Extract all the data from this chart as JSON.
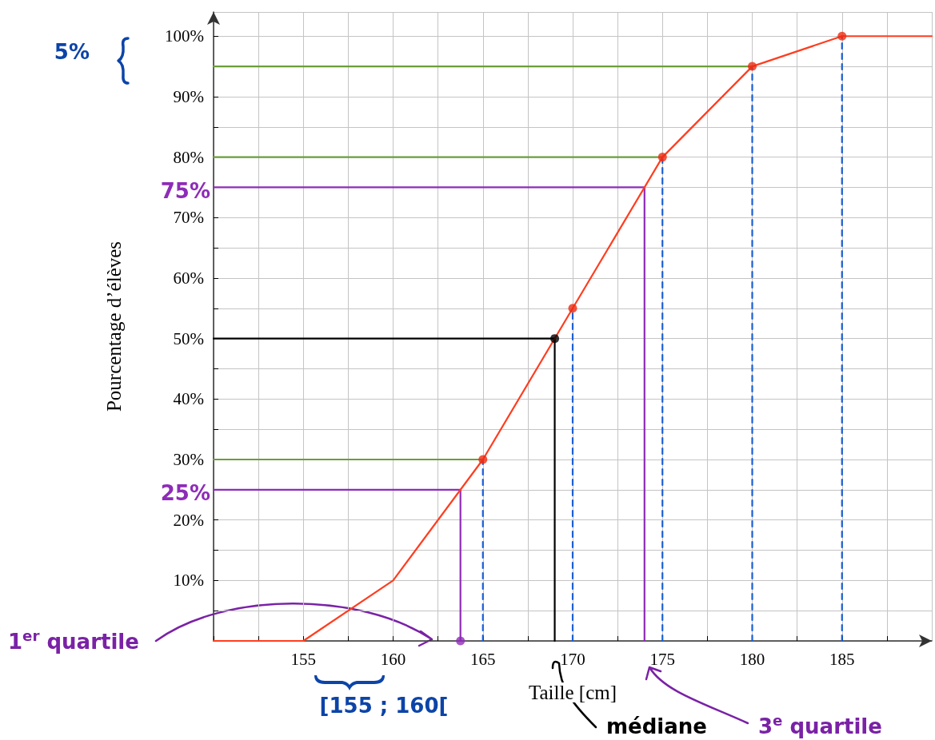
{
  "chart_data": {
    "type": "line",
    "xlabel": "Taille [cm]",
    "ylabel": "Pourcentage d’élèves",
    "xlim": [
      150,
      190
    ],
    "ylim": [
      0,
      104
    ],
    "xticks": [
      {
        "value": 150,
        "label": null
      },
      {
        "value": 152.5,
        "label": null
      },
      155,
      {
        "value": 157.5,
        "label": null
      },
      160,
      {
        "value": 162.5,
        "label": null
      },
      165,
      {
        "value": 167.5,
        "label": null
      },
      170,
      {
        "value": 172.5,
        "label": null
      },
      175,
      {
        "value": 177.5,
        "label": null
      },
      180,
      {
        "value": 182.5,
        "label": null
      },
      185,
      {
        "value": 187.5,
        "label": null
      }
    ],
    "yticks": [
      {
        "value": 0,
        "label": null
      },
      {
        "value": 5,
        "label": null
      },
      {
        "value": 10,
        "label": "10%"
      },
      {
        "value": 15,
        "label": null
      },
      {
        "value": 20,
        "label": "20%"
      },
      {
        "value": 25,
        "label": null
      },
      {
        "value": 30,
        "label": "30%"
      },
      {
        "value": 35,
        "label": null
      },
      {
        "value": 40,
        "label": "40%"
      },
      {
        "value": 45,
        "label": null
      },
      {
        "value": 50,
        "label": "50%"
      },
      {
        "value": 55,
        "label": null
      },
      {
        "value": 60,
        "label": "60%"
      },
      {
        "value": 65,
        "label": null
      },
      {
        "value": 70,
        "label": "70%"
      },
      {
        "value": 75,
        "label": null
      },
      {
        "value": 80,
        "label": "80%"
      },
      {
        "value": 85,
        "label": null
      },
      {
        "value": 90,
        "label": "90%"
      },
      {
        "value": 95,
        "label": null
      },
      {
        "value": 100,
        "label": "100%"
      }
    ],
    "grid": true,
    "series": [
      {
        "type": "line",
        "color": "#6a9e3a",
        "marker": "none",
        "line_style": "solid",
        "x": [
          150,
          165
        ],
        "values": [
          30,
          30
        ]
      },
      {
        "type": "line",
        "color": "#6a9e3a",
        "marker": "none",
        "line_style": "solid",
        "x": [
          150,
          175
        ],
        "values": [
          80,
          80
        ]
      },
      {
        "type": "line",
        "color": "#6a9e3a",
        "marker": "none",
        "line_style": "solid",
        "x": [
          150,
          180
        ],
        "values": [
          95,
          95
        ]
      },
      {
        "type": "line",
        "color": "#1a5fd6",
        "marker": "none",
        "line_style": "dashed",
        "x": [
          165,
          165
        ],
        "values": [
          0,
          30
        ]
      },
      {
        "type": "line",
        "color": "#1a5fd6",
        "marker": "none",
        "line_style": "dashed",
        "x": [
          170,
          170
        ],
        "values": [
          0,
          55
        ]
      },
      {
        "type": "line",
        "color": "#1a5fd6",
        "marker": "none",
        "line_style": "dashed",
        "x": [
          175,
          175
        ],
        "values": [
          0,
          80
        ]
      },
      {
        "type": "line",
        "color": "#1a5fd6",
        "marker": "none",
        "line_style": "dashed",
        "x": [
          180,
          180
        ],
        "values": [
          0,
          95
        ]
      },
      {
        "type": "line",
        "color": "#1a5fd6",
        "marker": "none",
        "line_style": "dashed",
        "x": [
          185,
          185
        ],
        "values": [
          0,
          100
        ]
      },
      {
        "type": "line",
        "color": "#8e2cb8",
        "marker": "none",
        "line_style": "solid",
        "x": [
          150,
          163.75,
          163.75
        ],
        "values": [
          25,
          25,
          0
        ]
      },
      {
        "type": "line",
        "color": "#8e2cb8",
        "marker": "none",
        "line_style": "solid",
        "x": [
          150,
          174,
          174
        ],
        "values": [
          75,
          75,
          0
        ]
      },
      {
        "type": "line",
        "color": "#000000",
        "marker": "none",
        "line_style": "solid",
        "x": [
          150,
          169,
          169
        ],
        "values": [
          50,
          50,
          0
        ]
      },
      {
        "type": "line",
        "color": "#ff3d1f",
        "marker": "none",
        "line_style": "solid",
        "x": [
          150,
          155,
          160,
          165,
          170,
          175,
          180,
          185,
          190
        ],
        "values": [
          0,
          0,
          10,
          30,
          55,
          80,
          95,
          100,
          100
        ]
      },
      {
        "type": "scatter",
        "color": "#ee2a10",
        "marker": "circle",
        "x": [
          165,
          170,
          175,
          180,
          185
        ],
        "values": [
          30,
          55,
          80,
          95,
          100
        ]
      },
      {
        "type": "scatter",
        "color": "#000000",
        "marker": "circle",
        "x": [
          169
        ],
        "values": [
          50
        ]
      },
      {
        "type": "scatter",
        "color": "#8e2cb8",
        "marker": "circle",
        "x": [
          163.75
        ],
        "values": [
          0
        ]
      }
    ],
    "annotations": [
      "5%",
      "75%",
      "25%",
      "1$^{er}$ quartile",
      "[155 ; 160[",
      "médiane",
      "3$^{e}$ quartile"
    ]
  }
}
